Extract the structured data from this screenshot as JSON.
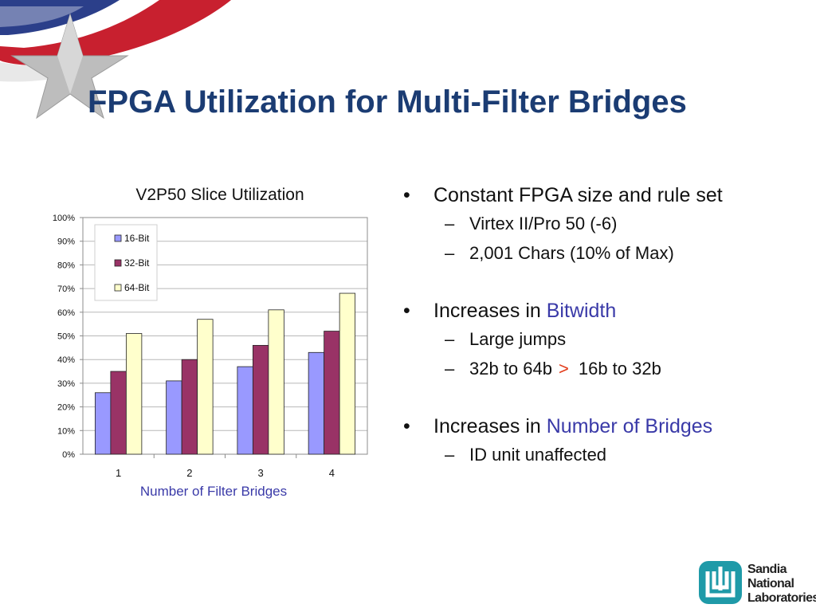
{
  "slide": {
    "title": "FPGA Utilization for Multi-Filter Bridges",
    "colors": {
      "title": "#1b3c73",
      "accent": "#3a3aa8",
      "emphasis": "#e23b1a"
    }
  },
  "chart_data": {
    "type": "bar",
    "title": "V2P50 Slice Utilization",
    "xlabel": "Number of Filter Bridges",
    "ylabel": "",
    "categories": [
      "1",
      "2",
      "3",
      "4"
    ],
    "series": [
      {
        "name": "16-Bit",
        "color": "#9999ff",
        "values": [
          26,
          31,
          37,
          43
        ]
      },
      {
        "name": "32-Bit",
        "color": "#993366",
        "values": [
          35,
          40,
          46,
          52
        ]
      },
      {
        "name": "64-Bit",
        "color": "#ffffcc",
        "values": [
          51,
          57,
          61,
          68
        ]
      }
    ],
    "ylim": [
      0,
      100
    ],
    "yticks": [
      "0%",
      "10%",
      "20%",
      "30%",
      "40%",
      "50%",
      "60%",
      "70%",
      "80%",
      "90%",
      "100%"
    ],
    "grid": true,
    "legend": "top-left"
  },
  "bullets": [
    {
      "text": "Constant FPGA size and rule set",
      "subs": [
        "Virtex II/Pro 50 (-6)",
        "2,001 Chars (10% of Max)"
      ]
    },
    {
      "prefix": "Increases in ",
      "highlight": "Bitwidth",
      "subs": [
        "Large jumps"
      ],
      "compare": {
        "left": "32b to 64b",
        "symbol": ">",
        "right": "16b to 32b"
      }
    },
    {
      "prefix": "Increases in ",
      "highlight": "Number of Bridges",
      "subs": [
        "ID unit unaffected"
      ]
    }
  ],
  "logo": {
    "line1": "Sandia",
    "line2": "National",
    "line3": "Laboratories"
  }
}
